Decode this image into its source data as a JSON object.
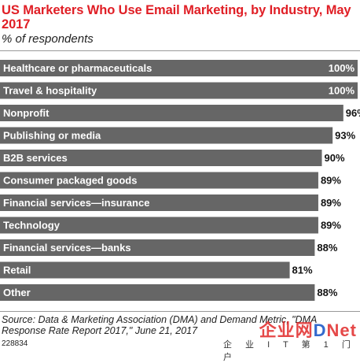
{
  "header": {
    "title": "US Marketers Who Use Email Marketing, by Industry, May 2017",
    "subtitle": "% of respondents"
  },
  "chart_data": {
    "type": "bar",
    "orientation": "horizontal",
    "categories": [
      "Healthcare or pharmaceuticals",
      "Travel & hospitality",
      "Nonprofit",
      "Publishing or media",
      "B2B services",
      "Consumer packaged goods",
      "Financial services—insurance",
      "Technology",
      "Financial services—banks",
      "Retail",
      "Other"
    ],
    "values": [
      100,
      100,
      96,
      93,
      90,
      89,
      89,
      89,
      88,
      81,
      88
    ],
    "value_suffix": "%",
    "xlim": [
      0,
      100
    ],
    "grid": false,
    "legend": "none",
    "bar_color": "#666666"
  },
  "footer": {
    "source": "Source: Data & Marketing Association (DMA) and Demand Metric, \"DMA Response Rate Report 2017,\" June 21, 2017",
    "chart_id": "228834"
  },
  "watermark": {
    "brand_part1": "企业网",
    "brand_part2": "D",
    "brand_part3": "Net",
    "sub": "企 业 I T 第 1 门 户"
  }
}
